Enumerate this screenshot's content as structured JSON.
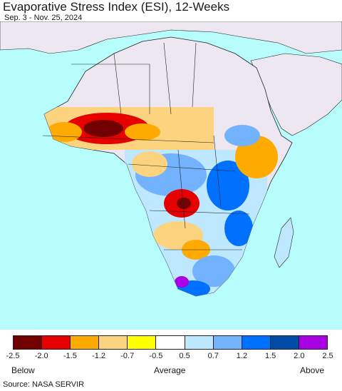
{
  "title": "Evaporative Stress Index (ESI), 12-Weeks",
  "subtitle": "Sep. 3 - Nov. 25, 2024",
  "source": "Source: NASA SERVIR",
  "colors": {
    "ocean": "#b8fdfd",
    "no_data_land": "#ece7f0",
    "border": "#222222"
  },
  "legend": {
    "colors": [
      "#730000",
      "#e60000",
      "#ffaa00",
      "#fcd37f",
      "#ffff00",
      "#ffffff",
      "#bee8ff",
      "#73b2ff",
      "#0070ff",
      "#004da8",
      "#a900e6"
    ],
    "ticks": [
      "-2.5",
      "-2.0",
      "-1.5",
      "-1.2",
      "-0.7",
      "-0.5",
      "0.5",
      "0.7",
      "1.2",
      "1.5",
      "2.0",
      "2.5"
    ],
    "below_label": "Below",
    "average_label": "Average",
    "above_label": "Above"
  }
}
